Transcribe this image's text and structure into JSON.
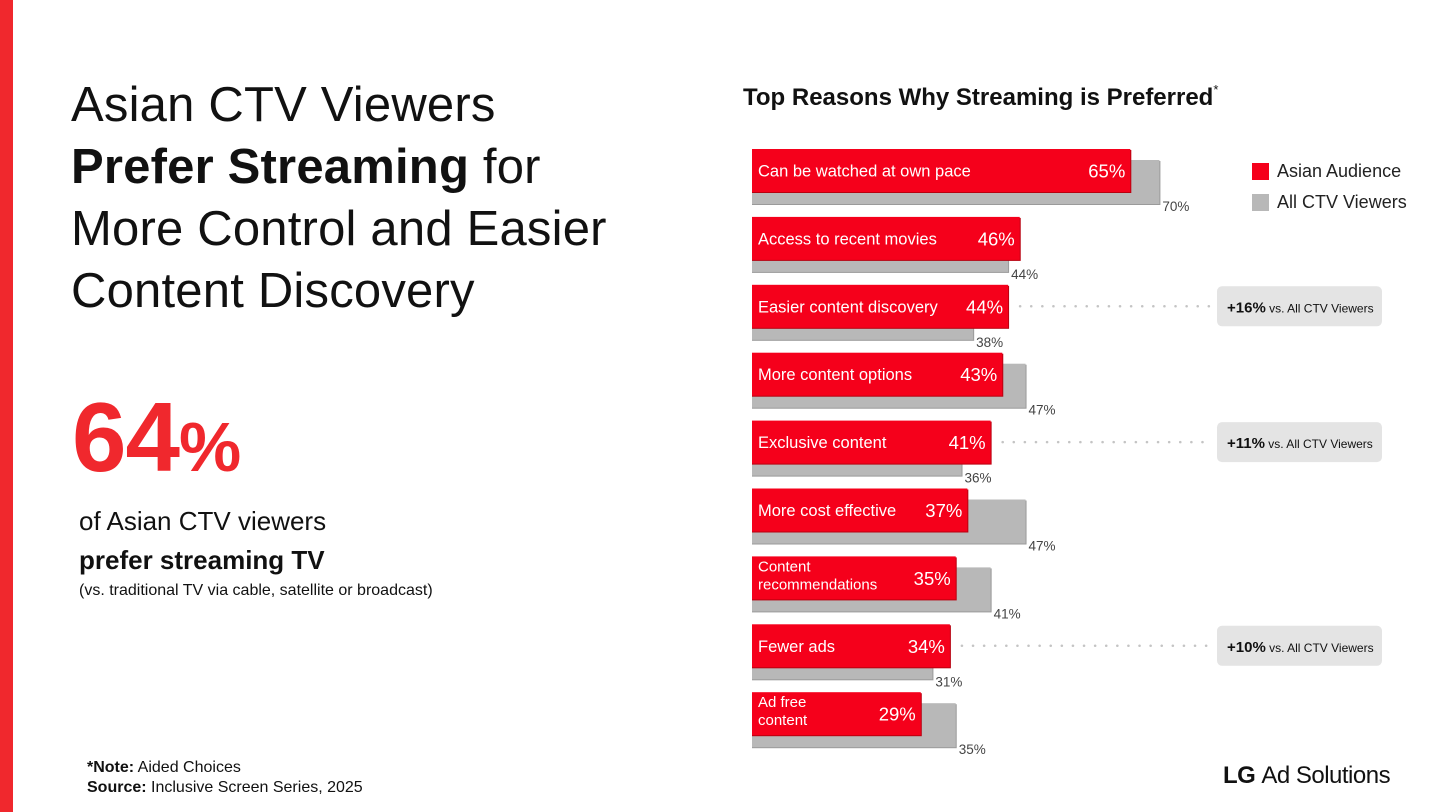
{
  "headline": {
    "line1": "Asian CTV Viewers",
    "bold": "Prefer Streaming",
    "line2_rest": " for",
    "line3": "More Control and Easier",
    "line4": "Content Discovery"
  },
  "stat": {
    "number": "64",
    "percent_sign": "%",
    "line1": "of Asian CTV viewers",
    "line2": "prefer streaming TV",
    "line3": "(vs. traditional TV via cable, satellite or broadcast)"
  },
  "note": {
    "note_label": "*Note:",
    "note_text": " Aided Choices",
    "source_label": "Source:",
    "source_text": " Inclusive Screen Series, 2025"
  },
  "logo": {
    "lg": "LG",
    "rest": "Ad Solutions"
  },
  "colors": {
    "accent": "#f0282d",
    "bar_asian": "#f5001b",
    "bar_all": "#b8b8b8",
    "badge_bg": "#e4e4e4"
  },
  "chart_data": {
    "type": "bar",
    "orientation": "horizontal",
    "title": "Top Reasons Why Streaming is Preferred",
    "title_marker": "*",
    "legend": {
      "position": "top-right",
      "items": [
        "Asian Audience",
        "All CTV Viewers"
      ]
    },
    "categories": [
      [
        "Can be watched at own pace"
      ],
      [
        "Access to recent movies"
      ],
      [
        "Easier content discovery"
      ],
      [
        "More content options"
      ],
      [
        "Exclusive content"
      ],
      [
        "More cost effective"
      ],
      [
        "Content",
        "recommendations"
      ],
      [
        "Fewer ads"
      ],
      [
        "Ad free",
        "content"
      ]
    ],
    "series": [
      {
        "name": "Asian Audience",
        "values": [
          65,
          46,
          44,
          43,
          41,
          37,
          35,
          34,
          29
        ]
      },
      {
        "name": "All CTV Viewers",
        "values": [
          70,
          44,
          38,
          47,
          36,
          47,
          41,
          31,
          35
        ]
      }
    ],
    "annotations": [
      {
        "category_index": 2,
        "bold": "+16%",
        "text": " vs. All CTV Viewers"
      },
      {
        "category_index": 4,
        "bold": "+11%",
        "text": " vs. All CTV Viewers"
      },
      {
        "category_index": 7,
        "bold": "+10%",
        "text": " vs. All CTV Viewers"
      }
    ],
    "value_suffix": "%"
  }
}
